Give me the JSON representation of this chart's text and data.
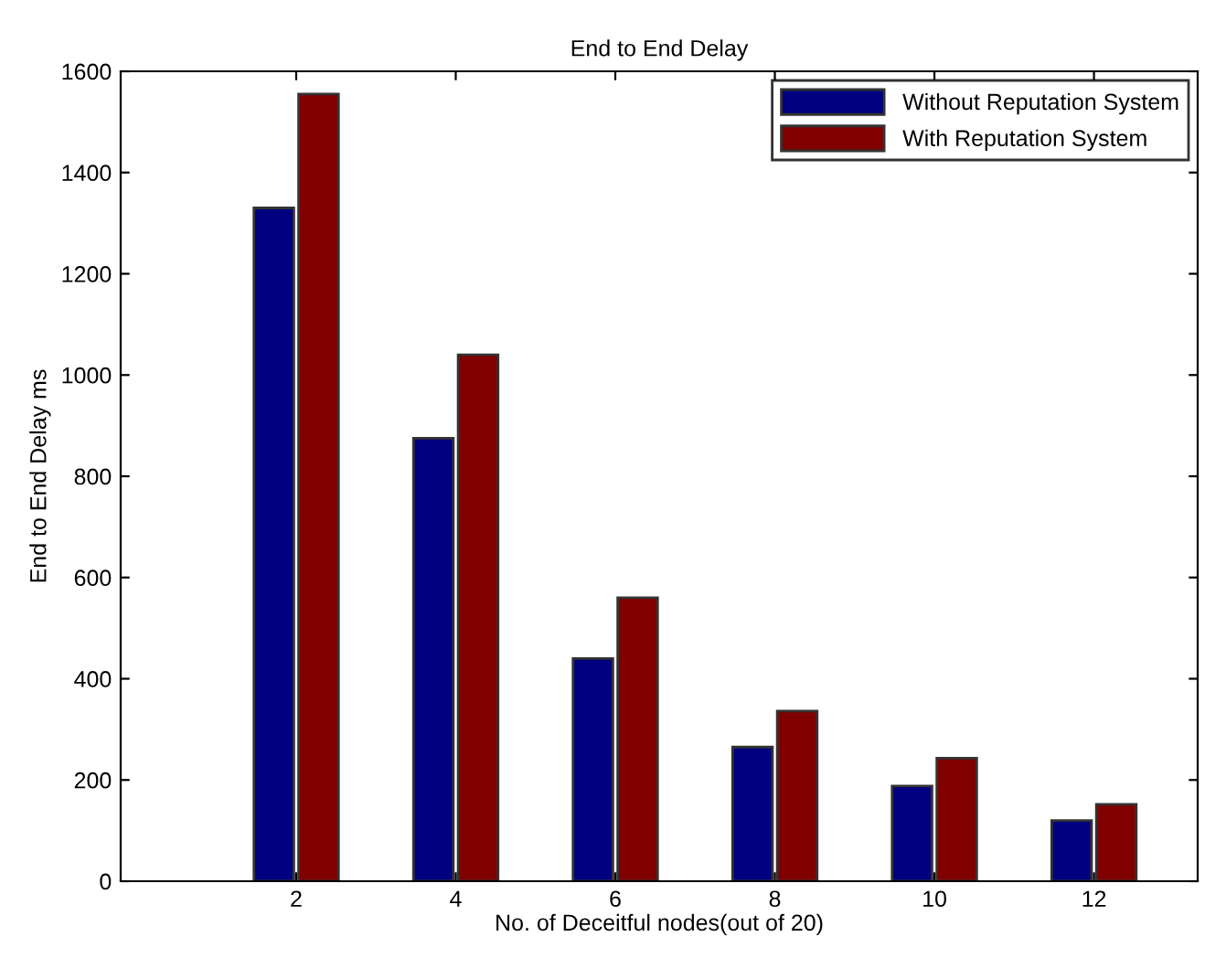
{
  "chart_data": {
    "type": "bar",
    "title": "End to End Delay",
    "xlabel": "No. of Deceitful nodes(out of 20)",
    "ylabel": "End to End Delay ms",
    "categories": [
      "2",
      "4",
      "6",
      "8",
      "10",
      "12"
    ],
    "series": [
      {
        "name": "Without Reputation System",
        "color": "#000080",
        "values": [
          1330,
          875,
          440,
          265,
          188,
          120
        ]
      },
      {
        "name": "With Reputation System",
        "color": "#800000",
        "values": [
          1555,
          1040,
          560,
          336,
          243,
          152
        ]
      }
    ],
    "ylim": [
      0,
      1600
    ],
    "yticks": [
      0,
      200,
      400,
      600,
      800,
      1000,
      1200,
      1400,
      1600
    ],
    "legend": "top right",
    "grid": false
  }
}
